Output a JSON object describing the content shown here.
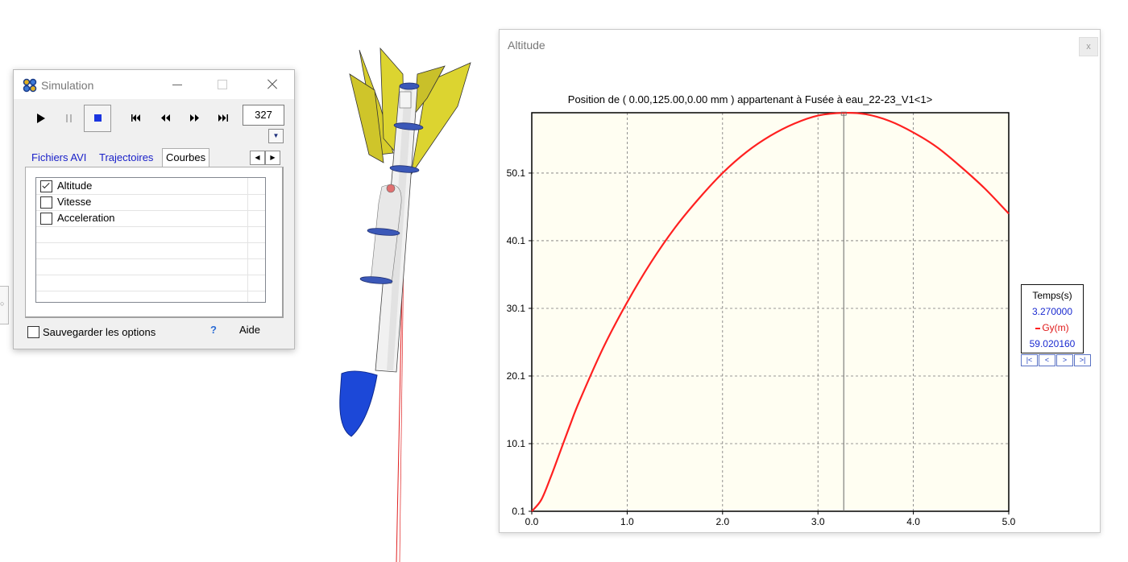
{
  "simulation": {
    "title": "Simulation",
    "frame_value": "327",
    "tabs": [
      "Fichiers AVI",
      "Trajectoires",
      "Courbes"
    ],
    "active_tab": "Courbes",
    "curves": [
      {
        "label": "Altitude",
        "checked": true
      },
      {
        "label": "Vitesse",
        "checked": false
      },
      {
        "label": "Acceleration",
        "checked": false
      }
    ],
    "save_label": "Sauvegarder les options",
    "save_checked": false,
    "help_icon": "?",
    "help_label": "Aide",
    "icons": [
      "play-icon",
      "pause-icon",
      "stop-icon",
      "skip-start-icon",
      "rewind-icon",
      "fast-forward-icon",
      "skip-end-icon"
    ]
  },
  "altitude": {
    "title": "Altitude",
    "close_icon": "x",
    "chart_title": "Position de ( 0.00,125.00,0.00  mm ) appartenant à Fusée à eau_22-23_V1<1>",
    "legend": {
      "header": "Temps(s)",
      "time_value": "3.270000",
      "series_label": "Gy(m)",
      "series_value": "59.020160",
      "nav": [
        "|<",
        "<",
        ">",
        ">|"
      ]
    }
  },
  "chart_data": {
    "type": "line",
    "title": "Position de ( 0.00,125.00,0.00  mm ) appartenant à Fusée à eau_22-23_V1<1>",
    "xlabel": "",
    "ylabel": "",
    "xlim": [
      0.0,
      5.0
    ],
    "ylim": [
      0.1,
      59.02
    ],
    "xticks": [
      "0.0",
      "1.0",
      "2.0",
      "3.0",
      "4.0",
      "5.0"
    ],
    "yticks": [
      "0.1",
      "10.1",
      "20.1",
      "30.1",
      "40.1",
      "50.1"
    ],
    "grid": true,
    "cursor_x": 3.27,
    "series": [
      {
        "name": "Gy(m)",
        "color": "#ff2020",
        "x": [
          0.0,
          0.1,
          0.2,
          0.3,
          0.4,
          0.5,
          0.75,
          1.0,
          1.25,
          1.5,
          1.75,
          2.0,
          2.25,
          2.5,
          2.75,
          3.0,
          3.27,
          3.5,
          3.75,
          4.0,
          4.25,
          4.5,
          4.75,
          5.0
        ],
        "y": [
          0.1,
          1.8,
          5.2,
          9.0,
          12.8,
          16.4,
          24.3,
          31.0,
          36.9,
          42.0,
          46.3,
          50.1,
          53.2,
          55.6,
          57.4,
          58.6,
          59.0,
          58.8,
          57.8,
          56.1,
          53.9,
          51.0,
          47.8,
          44.1
        ]
      }
    ]
  }
}
